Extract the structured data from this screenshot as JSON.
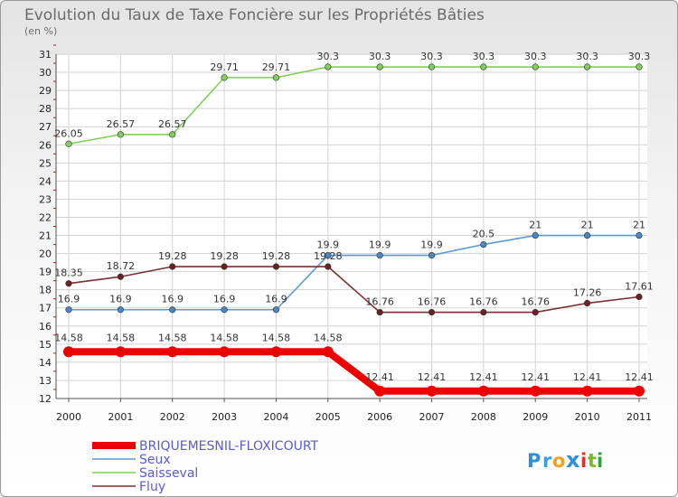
{
  "chart_data": {
    "type": "line",
    "title": "Evolution du Taux de Taxe Foncière sur les Propriétés Bâties",
    "subtitle": "(en %)",
    "xlabel": "",
    "ylabel": "",
    "ylim": [
      12,
      31
    ],
    "categories": [
      "2000",
      "2001",
      "2002",
      "2003",
      "2004",
      "2005",
      "2006",
      "2007",
      "2008",
      "2009",
      "2010",
      "2011"
    ],
    "y_ticks": [
      "12",
      "13",
      "14",
      "15",
      "16",
      "17",
      "18",
      "19",
      "20",
      "21",
      "22",
      "23",
      "24",
      "25",
      "26",
      "27",
      "28",
      "29",
      "30",
      "31"
    ],
    "grid": true,
    "legend_position": "bottom-left",
    "series": [
      {
        "name": "Saisseval",
        "color": "#7ed05a",
        "dot_color": "#7ed05a",
        "values": [
          26.05,
          26.57,
          26.57,
          29.71,
          29.71,
          30.3,
          30.3,
          30.3,
          30.3,
          30.3,
          30.3,
          30.3
        ],
        "labels": [
          "26.05",
          "26.57",
          "26.57",
          "29.71",
          "29.71",
          "30.3",
          "30.3",
          "30.3",
          "30.3",
          "30.3",
          "30.3",
          "30.3"
        ]
      },
      {
        "name": "Seux",
        "color": "#5b9bd5",
        "dot_color": "#4a87c4",
        "values": [
          16.9,
          16.9,
          16.9,
          16.9,
          16.9,
          19.9,
          19.9,
          19.9,
          20.5,
          21,
          21,
          21
        ],
        "labels": [
          "16.9",
          "16.9",
          "16.9",
          "16.9",
          "16.9",
          "19.9",
          "19.9",
          "19.9",
          "20.5",
          "21",
          "21",
          "21"
        ]
      },
      {
        "name": "Fluy",
        "color": "#7a3030",
        "dot_color": "#6a2222",
        "values": [
          18.35,
          18.72,
          19.28,
          19.28,
          19.28,
          19.28,
          16.76,
          16.76,
          16.76,
          16.76,
          17.26,
          17.61
        ],
        "labels": [
          "18.35",
          "18.72",
          "19.28",
          "19.28",
          "19.28",
          "19.28",
          "16.76",
          "16.76",
          "16.76",
          "16.76",
          "17.26",
          "17.61"
        ]
      },
      {
        "name": "BRIQUEMESNIL-FLOXICOURT",
        "color": "#ee0000",
        "dot_color": "#ee0000",
        "values": [
          14.58,
          14.58,
          14.58,
          14.58,
          14.58,
          14.58,
          12.41,
          12.41,
          12.41,
          12.41,
          12.41,
          12.41
        ],
        "labels": [
          "14.58",
          "14.58",
          "14.58",
          "14.58",
          "14.58",
          "14.58",
          "12.41",
          "12.41",
          "12.41",
          "12.41",
          "12.41",
          "12.41"
        ]
      }
    ],
    "legend": [
      "BRIQUEMESNIL-FLOXICOURT",
      "Seux",
      "Saisseval",
      "Fluy"
    ]
  },
  "logo": {
    "text": "Proxiti",
    "letters": [
      "P",
      "r",
      "o",
      "x",
      "i",
      "t",
      "i"
    ],
    "colors": [
      "#2f8fd8",
      "#3aa0e0",
      "#f0a020",
      "#2f8fd8",
      "#e03030",
      "#7ab830",
      "#30a040"
    ]
  }
}
